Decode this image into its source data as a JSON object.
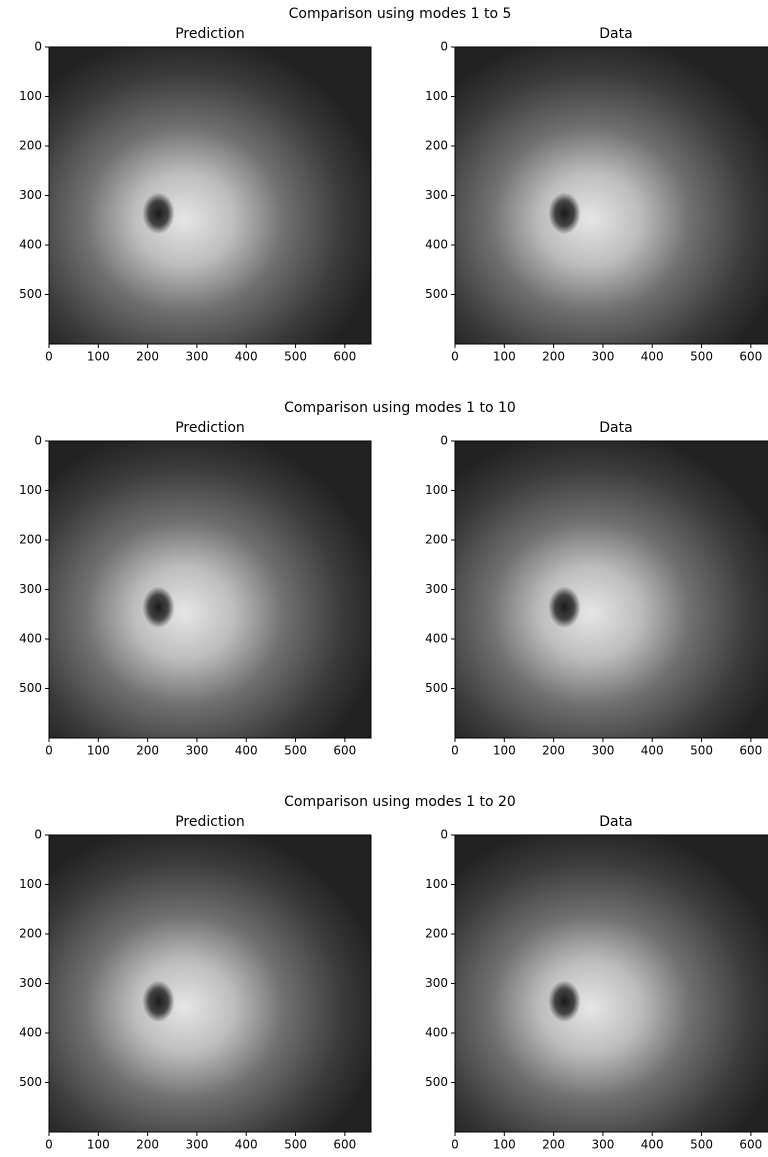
{
  "chart_data": [
    {
      "type": "image",
      "suptitle": "Comparison using modes 1 to 5",
      "title": "Prediction",
      "xlim": [
        0,
        653
      ],
      "ylim": [
        600,
        0
      ],
      "xticks": [
        0,
        100,
        200,
        300,
        400,
        500,
        600
      ],
      "yticks": [
        0,
        100,
        200,
        300,
        400,
        500
      ]
    },
    {
      "type": "image",
      "title": "Data",
      "xlim": [
        0,
        653
      ],
      "ylim": [
        600,
        0
      ],
      "xticks": [
        0,
        100,
        200,
        300,
        400,
        500,
        600
      ],
      "yticks": [
        0,
        100,
        200,
        300,
        400,
        500
      ]
    },
    {
      "type": "image",
      "suptitle": "Comparison using modes 1 to 10",
      "title": "Prediction",
      "xlim": [
        0,
        653
      ],
      "ylim": [
        600,
        0
      ],
      "xticks": [
        0,
        100,
        200,
        300,
        400,
        500,
        600
      ],
      "yticks": [
        0,
        100,
        200,
        300,
        400,
        500
      ]
    },
    {
      "type": "image",
      "title": "Data",
      "xlim": [
        0,
        653
      ],
      "ylim": [
        600,
        0
      ],
      "xticks": [
        0,
        100,
        200,
        300,
        400,
        500,
        600
      ],
      "yticks": [
        0,
        100,
        200,
        300,
        400,
        500
      ]
    },
    {
      "type": "image",
      "suptitle": "Comparison using modes 1 to 20",
      "title": "Prediction",
      "xlim": [
        0,
        653
      ],
      "ylim": [
        600,
        0
      ],
      "xticks": [
        0,
        100,
        200,
        300,
        400,
        500,
        600
      ],
      "yticks": [
        0,
        100,
        200,
        300,
        400,
        500
      ]
    },
    {
      "type": "image",
      "title": "Data",
      "xlim": [
        0,
        653
      ],
      "ylim": [
        600,
        0
      ],
      "xticks": [
        0,
        100,
        200,
        300,
        400,
        500,
        600
      ],
      "yticks": [
        0,
        100,
        200,
        300,
        400,
        500
      ]
    }
  ]
}
